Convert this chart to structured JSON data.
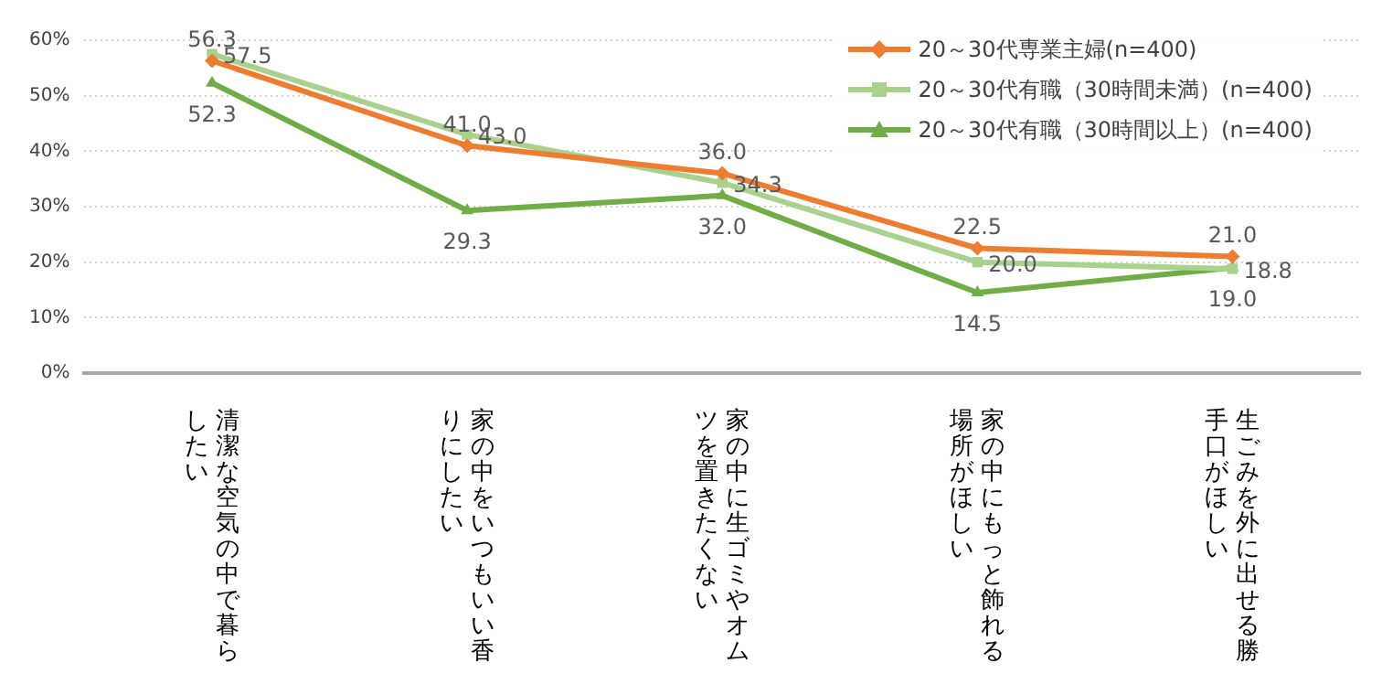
{
  "chart_data": {
    "type": "line",
    "categories": [
      "清潔な空気の中で暮らしたい",
      "家の中をいつもいい香りにしたい",
      "家の中に生ゴミやオムツを置きたくない",
      "家の中にもっと飾れる場所がほしい",
      "生ごみを外に出せる勝手口がほしい"
    ],
    "series": [
      {
        "name": "20～30代専業主婦(n=400)",
        "color": "#ed7d31",
        "marker": "diamond",
        "values": [
          56.3,
          41.0,
          36.0,
          22.5,
          21.0
        ],
        "value_labels": [
          "56.3",
          "41.0",
          "36.0",
          "22.5",
          "21.0"
        ]
      },
      {
        "name": "20～30代有職（30時間未満）(n=400)",
        "color": "#a9d18e",
        "marker": "square",
        "values": [
          57.5,
          43.0,
          34.3,
          20.0,
          18.8
        ],
        "value_labels": [
          "57.5",
          "43.0",
          "34.3",
          "20.0",
          "18.8"
        ]
      },
      {
        "name": "20～30代有職（30時間以上）(n=400)",
        "color": "#70ad47",
        "marker": "triangle",
        "values": [
          52.3,
          29.3,
          32.0,
          14.5,
          19.0
        ],
        "value_labels": [
          "52.3",
          "29.3",
          "32.0",
          "14.5",
          "19.0"
        ]
      }
    ],
    "ylim": [
      0,
      60
    ],
    "yticks": [
      {
        "value": 0,
        "label": "0%"
      },
      {
        "value": 10,
        "label": "10%"
      },
      {
        "value": 20,
        "label": "20%"
      },
      {
        "value": 30,
        "label": "30%"
      },
      {
        "value": 40,
        "label": "40%"
      },
      {
        "value": 50,
        "label": "50%"
      },
      {
        "value": 60,
        "label": "60%"
      }
    ],
    "grid": "y",
    "legend": "top right"
  }
}
